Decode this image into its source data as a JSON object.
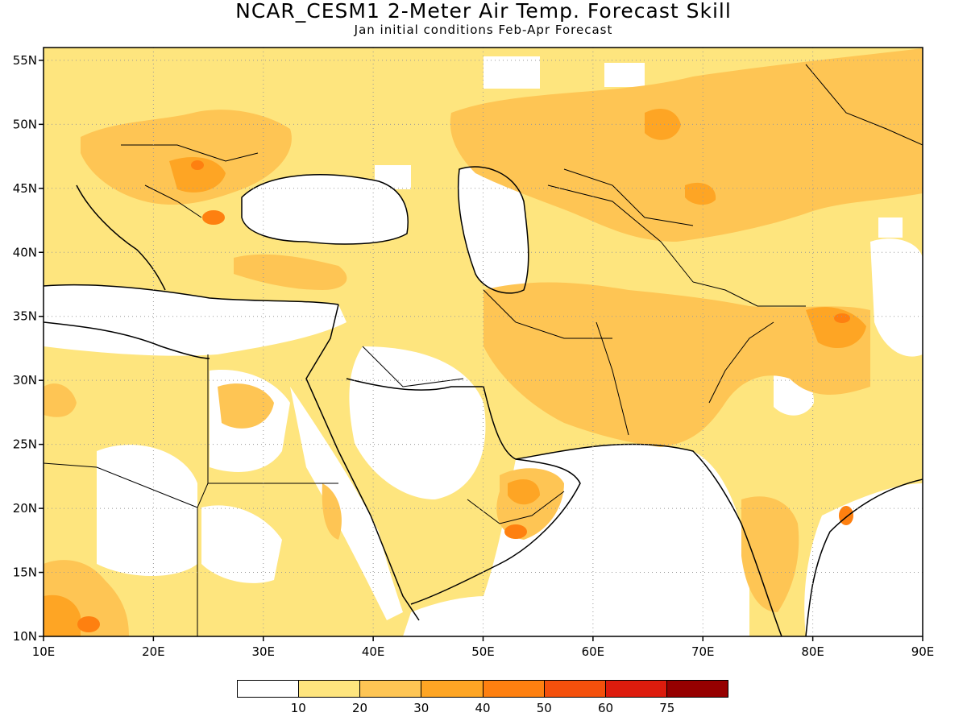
{
  "title": "NCAR_CESM1 2-Meter Air Temp. Forecast Skill",
  "subtitle": "Jan initial conditions  Feb-Apr Forecast",
  "map": {
    "lon_range": [
      10,
      90
    ],
    "lat_range": [
      10,
      56
    ],
    "lon_ticks": [
      "10E",
      "20E",
      "30E",
      "40E",
      "50E",
      "60E",
      "70E",
      "80E",
      "90E"
    ],
    "lat_ticks": [
      "10N",
      "15N",
      "20N",
      "25N",
      "30N",
      "35N",
      "40N",
      "45N",
      "50N",
      "55N"
    ],
    "gridlines": "dotted",
    "dominant_level_color": "#fec554"
  },
  "legend": {
    "colors": [
      "#ffffff",
      "#fee57e",
      "#fec554",
      "#fea524",
      "#fe8010",
      "#f4500c",
      "#dd1c0d",
      "#960000"
    ],
    "labels": [
      "10",
      "20",
      "30",
      "40",
      "50",
      "60",
      "75"
    ]
  }
}
